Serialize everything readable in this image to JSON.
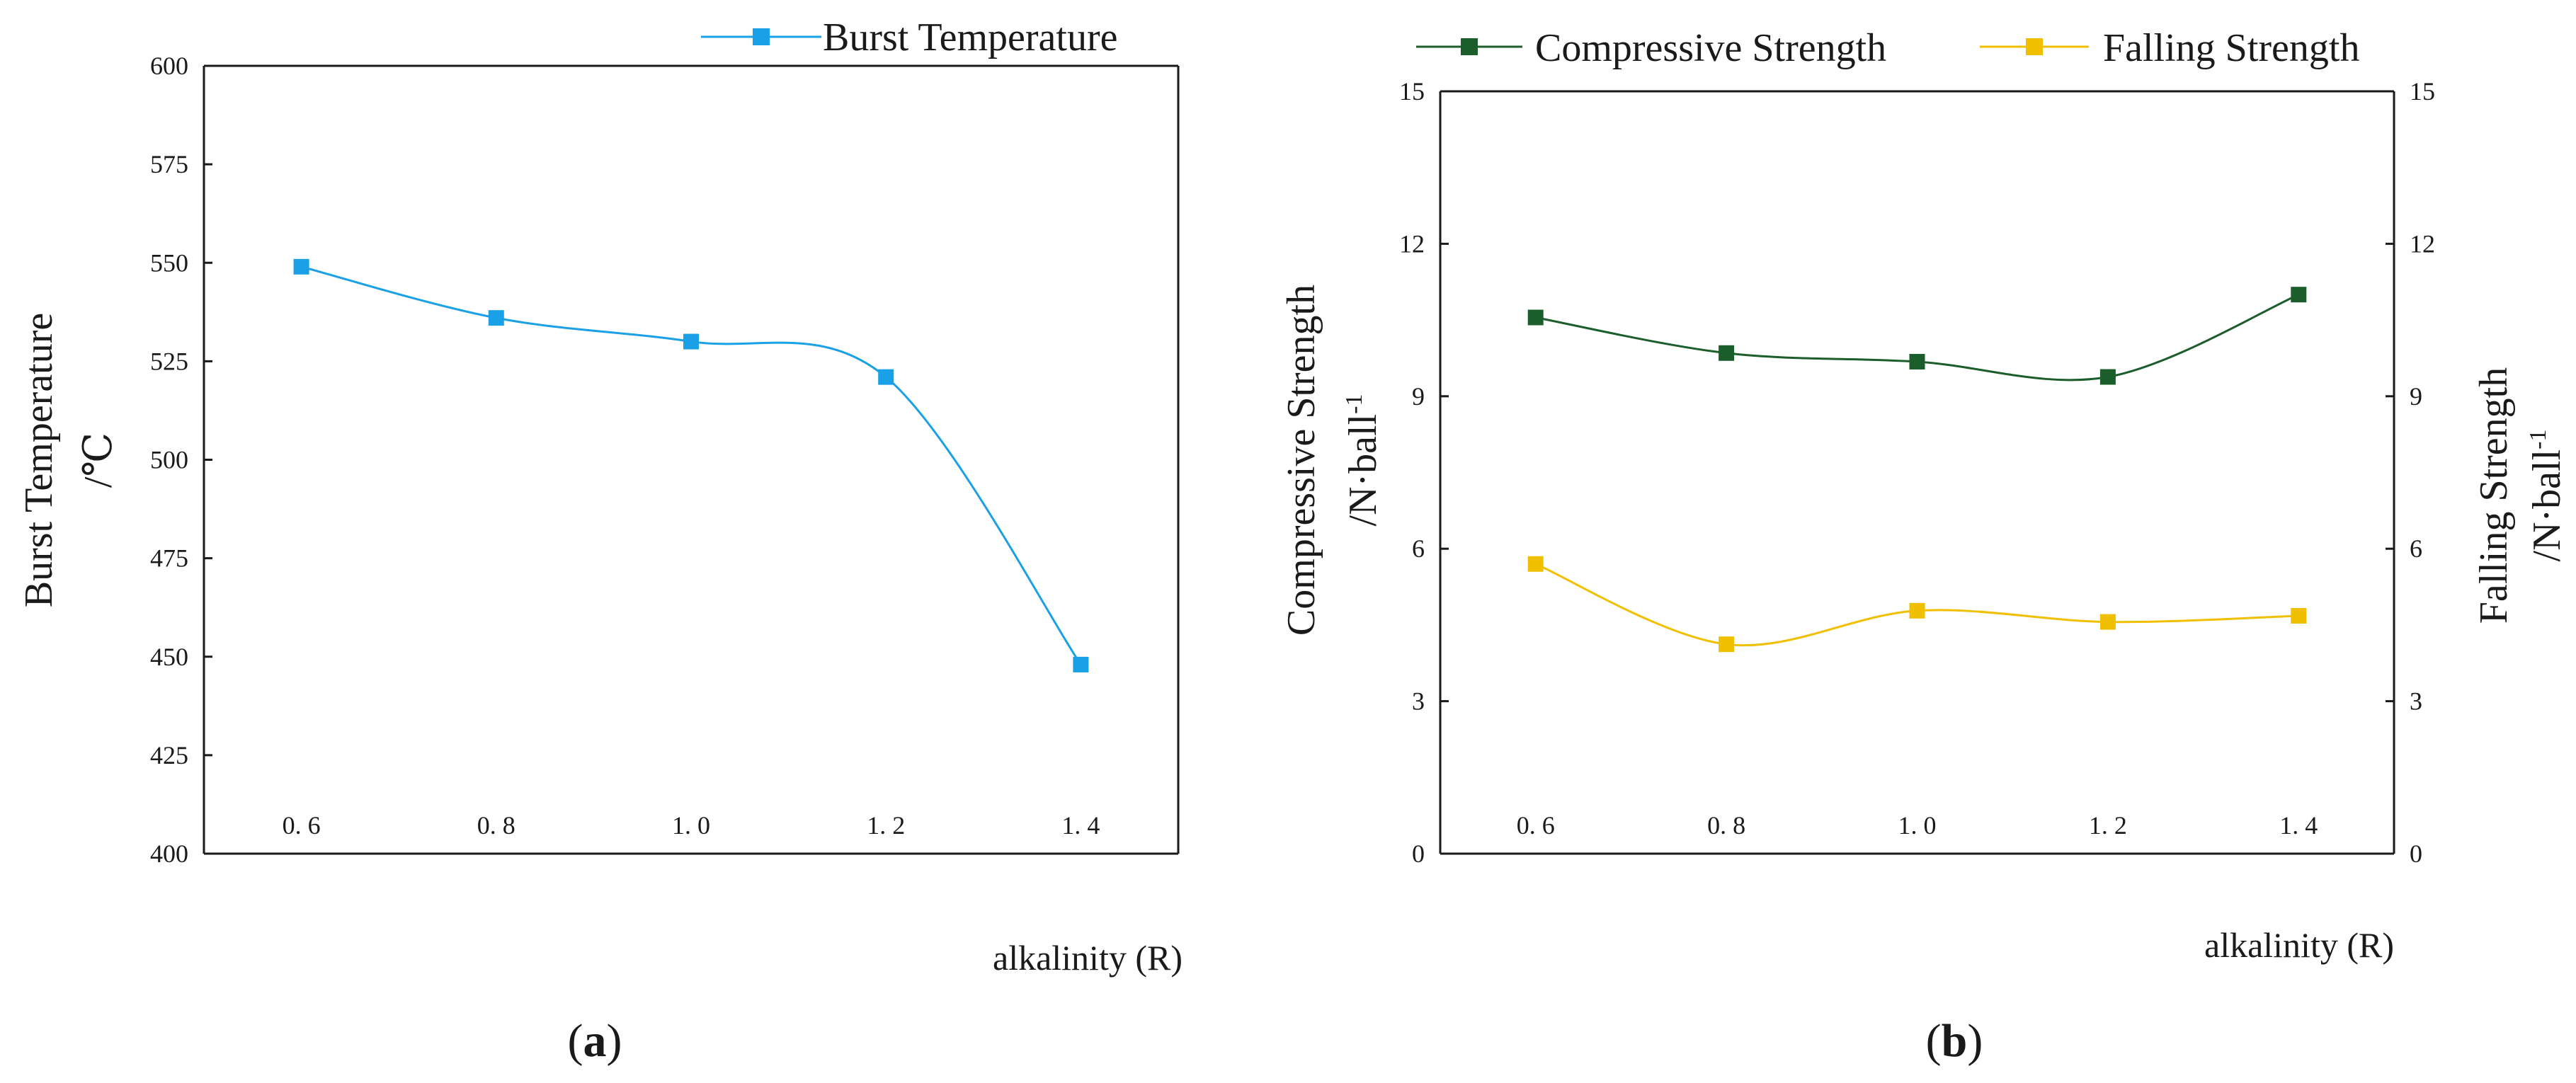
{
  "chart_data": [
    {
      "panel": "a",
      "type": "line",
      "label_open": "(",
      "label_letter": "a",
      "label_close": ")",
      "xlabel": "alkalinity (R)",
      "ylabel": "Burst Temperature",
      "ylabel_unit": "/℃",
      "x": [
        0.6,
        0.8,
        1.0,
        1.2,
        1.4
      ],
      "x_tick_labels": [
        "0. 6",
        "0. 8",
        "1. 0",
        "1. 2",
        "1. 4"
      ],
      "xlim": [
        0.5,
        1.5
      ],
      "ylim": [
        400,
        600
      ],
      "y_ticks": [
        400,
        425,
        450,
        475,
        500,
        525,
        550,
        575,
        600
      ],
      "series": [
        {
          "name": "Burst Temperature",
          "color": "#1aa0e6",
          "values": [
            549,
            536,
            530,
            521,
            448
          ]
        }
      ]
    },
    {
      "panel": "b",
      "type": "line",
      "label_open": "(",
      "label_letter": "b",
      "label_close": ")",
      "xlabel": "alkalinity (R)",
      "ylabel_left": "Compressive Strength",
      "ylabel_left_unit": "/N·ball",
      "ylabel_right": "Falling Strength",
      "ylabel_right_unit": "/N·ball",
      "unit_superscript": "-1",
      "x": [
        0.6,
        0.8,
        1.0,
        1.2,
        1.4
      ],
      "x_tick_labels": [
        "0. 6",
        "0. 8",
        "1. 0",
        "1. 2",
        "1. 4"
      ],
      "xlim": [
        0.5,
        1.5
      ],
      "ylim": [
        0,
        15
      ],
      "y_ticks": [
        0,
        3,
        6,
        9,
        12,
        15
      ],
      "series": [
        {
          "name": "Compressive Strength",
          "color": "#1b5e2b",
          "axis": "left",
          "values": [
            10.55,
            9.85,
            9.68,
            9.38,
            11.0
          ]
        },
        {
          "name": "Falling Strength",
          "color": "#f0c000",
          "axis": "right",
          "values": [
            5.7,
            4.12,
            4.78,
            4.56,
            4.68
          ]
        }
      ]
    }
  ]
}
